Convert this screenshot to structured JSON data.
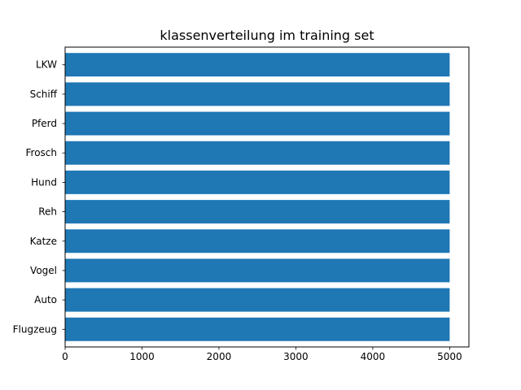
{
  "chart_data": {
    "type": "bar",
    "orientation": "horizontal",
    "title": "klassenverteilung im training set",
    "xlabel": "",
    "ylabel": "",
    "categories": [
      "Flugzeug",
      "Auto",
      "Vogel",
      "Katze",
      "Reh",
      "Hund",
      "Frosch",
      "Pferd",
      "Schiff",
      "LKW"
    ],
    "values": [
      5000,
      5000,
      5000,
      5000,
      5000,
      5000,
      5000,
      5000,
      5000,
      5000
    ],
    "xlim": [
      0,
      5250
    ],
    "xticks": [
      0,
      1000,
      2000,
      3000,
      4000,
      5000
    ],
    "grid": false,
    "bar_color": "#1f77b4"
  }
}
